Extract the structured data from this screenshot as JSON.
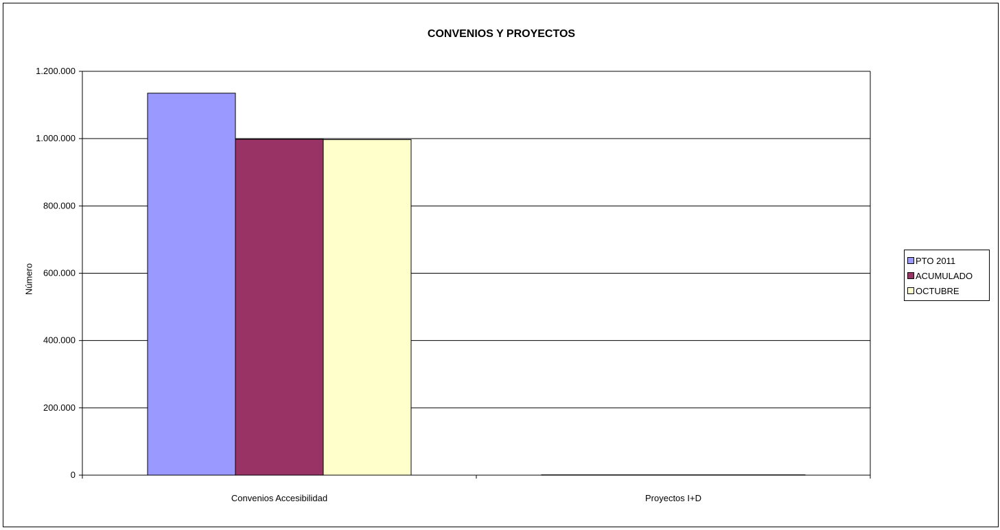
{
  "chart_data": {
    "type": "bar",
    "title": "CONVENIOS Y PROYECTOS",
    "xlabel": "",
    "ylabel": "Número",
    "categories": [
      "Convenios Accesibilidad",
      "Proyectos I+D"
    ],
    "series": [
      {
        "name": "PTO  2011",
        "color": "#9999ff",
        "values": [
          1135000,
          1
        ]
      },
      {
        "name": "ACUMULADO",
        "color": "#993366",
        "values": [
          998000,
          1
        ]
      },
      {
        "name": "OCTUBRE",
        "color": "#ffffcc",
        "values": [
          997000,
          1
        ]
      }
    ],
    "ylim": [
      0,
      1200000
    ],
    "ytick_values": [
      0,
      200000,
      400000,
      600000,
      800000,
      1000000,
      1200000
    ],
    "ytick_labels": [
      "0",
      "200.000",
      "400.000",
      "600.000",
      "800.000",
      "1.000.000",
      "1.200.000"
    ],
    "grid": true,
    "legend_position": "right"
  }
}
